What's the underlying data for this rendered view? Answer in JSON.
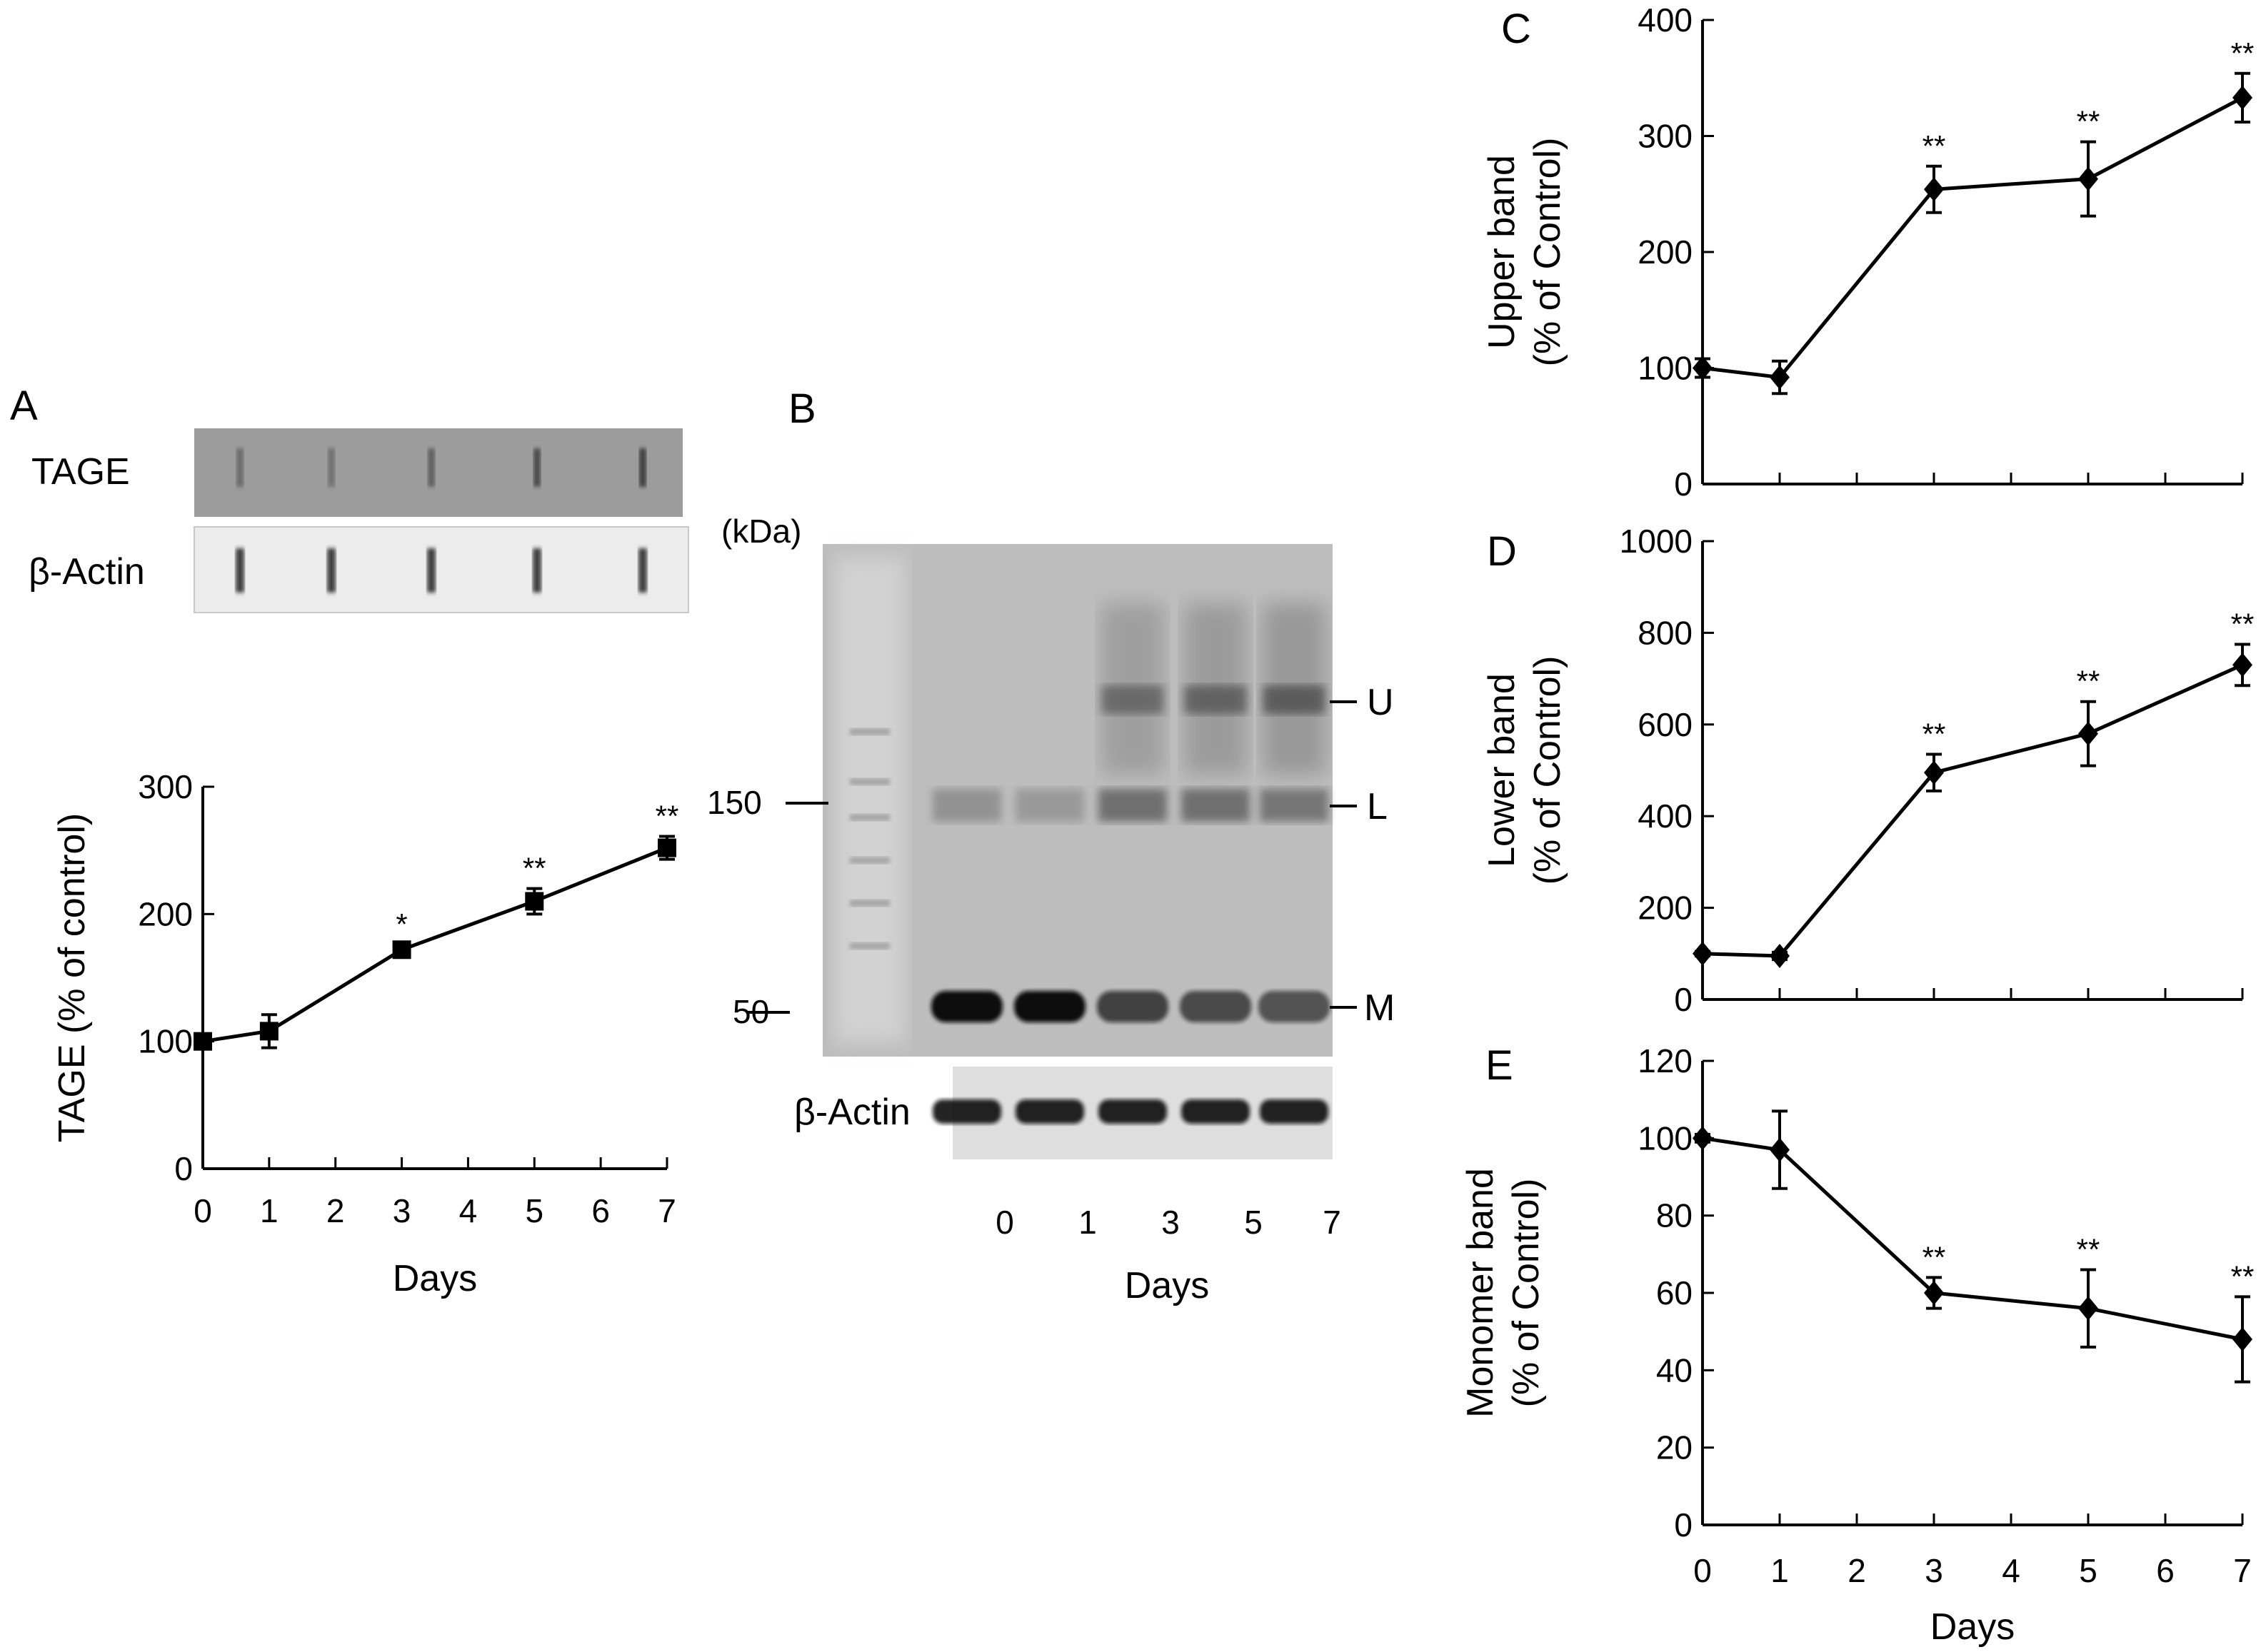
{
  "panels": {
    "A": {
      "letter": "A",
      "blot": {
        "rows": [
          "TAGE",
          "β-Actin"
        ]
      }
    },
    "B": {
      "letter": "B",
      "unit": "(kDa)",
      "markers": [
        "150",
        "50"
      ],
      "band_labels": [
        "U",
        "L",
        "M"
      ],
      "actin_label": "β-Actin",
      "lane_labels": [
        "0",
        "1",
        "3",
        "5",
        "7"
      ],
      "xlabel": "Days"
    }
  },
  "chart_data": [
    {
      "panel": "A",
      "type": "line",
      "x": [
        0,
        1,
        3,
        5,
        7
      ],
      "series": [
        {
          "values": [
            100,
            108,
            172,
            210,
            252
          ],
          "error": [
            6,
            13,
            4,
            10,
            9
          ]
        }
      ],
      "significance": [
        "",
        "",
        "*",
        "**",
        "**"
      ],
      "xticks": [
        "0",
        "1",
        "2",
        "3",
        "4",
        "5",
        "6",
        "7"
      ],
      "yticks": [
        "0",
        "100",
        "200",
        "300"
      ],
      "xlim": [
        0,
        7
      ],
      "ylim": [
        0,
        300
      ],
      "xlabel": "Days",
      "ylabel": "TAGE (% of control)",
      "marker": "square",
      "color": "#000000"
    },
    {
      "panel": "C",
      "type": "line",
      "x": [
        0,
        1,
        3,
        5,
        7
      ],
      "series": [
        {
          "values": [
            100,
            92,
            254,
            263,
            333
          ],
          "error": [
            8,
            14,
            20,
            32,
            21
          ]
        }
      ],
      "significance": [
        "",
        "",
        "**",
        "**",
        "**"
      ],
      "xticks": [],
      "yticks": [
        "0",
        "100",
        "200",
        "300",
        "400"
      ],
      "xlim": [
        0,
        7
      ],
      "ylim": [
        0,
        400
      ],
      "xlabel": "",
      "ylabel": "Upper band\n(% of Control)",
      "marker": "diamond",
      "color": "#000000"
    },
    {
      "panel": "D",
      "type": "line",
      "x": [
        0,
        1,
        3,
        5,
        7
      ],
      "series": [
        {
          "values": [
            100,
            95,
            495,
            580,
            730
          ],
          "error": [
            5,
            8,
            40,
            70,
            45
          ]
        }
      ],
      "significance": [
        "",
        "",
        "**",
        "**",
        "**"
      ],
      "xticks": [],
      "yticks": [
        "0",
        "200",
        "400",
        "600",
        "800",
        "1000"
      ],
      "xlim": [
        0,
        7
      ],
      "ylim": [
        0,
        1000
      ],
      "xlabel": "",
      "ylabel": "Lower band\n(% of Control)",
      "marker": "diamond",
      "color": "#000000"
    },
    {
      "panel": "E",
      "type": "line",
      "x": [
        0,
        1,
        3,
        5,
        7
      ],
      "series": [
        {
          "values": [
            100,
            97,
            60,
            56,
            48
          ],
          "error": [
            1,
            10,
            4,
            10,
            11
          ]
        }
      ],
      "significance": [
        "",
        "",
        "**",
        "**",
        "**"
      ],
      "xticks": [
        "0",
        "1",
        "2",
        "3",
        "4",
        "5",
        "6",
        "7"
      ],
      "yticks": [
        "0",
        "20",
        "40",
        "60",
        "80",
        "100",
        "120"
      ],
      "xlim": [
        0,
        7
      ],
      "ylim": [
        0,
        120
      ],
      "xlabel": "Days",
      "ylabel": "Monomer band\n(% of Control)",
      "marker": "diamond",
      "color": "#000000"
    }
  ]
}
